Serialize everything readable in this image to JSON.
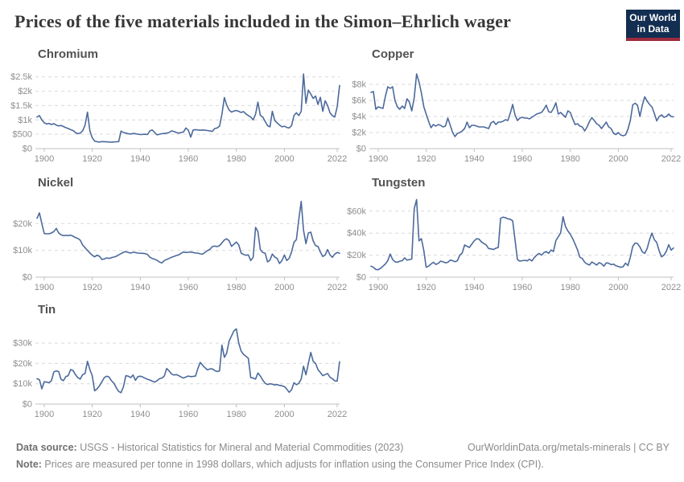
{
  "header": {
    "title": "Prices of the five materials included in the Simon–Ehrlich wager",
    "logo": {
      "line1": "Our World",
      "line2": "in Data"
    }
  },
  "footer": {
    "source_label": "Data source:",
    "source_text": " USGS - Historical Statistics for Mineral and Material Commodities (2023)",
    "attribution": "OurWorldinData.org/metals-minerals | CC BY",
    "note_label": "Note:",
    "note_text": " Prices are measured per tonne in 1998 dollars, which adjusts for inflation using the Consumer Price Index (CPI)."
  },
  "colors": {
    "line": "#4c6a9c",
    "grid": "#d9d9d9",
    "axis": "#c0c0c0",
    "tick_label": "#8e8e8e",
    "chart_title": "#525252",
    "page_title": "#373737",
    "logo_bg": "#122e50",
    "logo_red": "#9e2a3d"
  },
  "chart_data": [
    {
      "type": "line",
      "title": "Chromium",
      "start_year": 1897,
      "end_year": 2023,
      "x_ticks": [
        1900,
        1920,
        1940,
        1960,
        1980,
        2000,
        2022
      ],
      "x_tick_labels": [
        "1900",
        "1920",
        "1940",
        "1960",
        "1980",
        "2000",
        "2022"
      ],
      "y_ticks": [
        0,
        500,
        1000,
        1500,
        2000,
        2500
      ],
      "y_tick_labels": [
        "$0",
        "$500",
        "$1k",
        "$1.5k",
        "$2k",
        "$2.5k"
      ],
      "ymax": 2800,
      "values": [
        1100,
        1150,
        1000,
        900,
        860,
        880,
        840,
        870,
        820,
        790,
        810,
        770,
        730,
        700,
        660,
        630,
        560,
        520,
        540,
        620,
        820,
        1270,
        620,
        380,
        260,
        240,
        230,
        245,
        240,
        235,
        230,
        228,
        232,
        238,
        245,
        610,
        560,
        540,
        520,
        510,
        530,
        520,
        500,
        490,
        495,
        500,
        490,
        620,
        650,
        560,
        480,
        500,
        520,
        530,
        540,
        560,
        620,
        600,
        560,
        540,
        560,
        580,
        720,
        640,
        400,
        650,
        660,
        650,
        640,
        650,
        640,
        630,
        620,
        600,
        700,
        720,
        780,
        1200,
        1780,
        1520,
        1350,
        1270,
        1310,
        1330,
        1300,
        1260,
        1290,
        1210,
        1150,
        1100,
        1000,
        1200,
        1620,
        1160,
        1100,
        950,
        800,
        760,
        1300,
        980,
        900,
        820,
        760,
        780,
        740,
        720,
        800,
        1150,
        1250,
        1150,
        1300,
        2600,
        1580,
        2040,
        1900,
        1750,
        1830,
        1540,
        1790,
        1300,
        1670,
        1500,
        1250,
        1150,
        1100,
        1450,
        2200
      ]
    },
    {
      "type": "line",
      "title": "Copper",
      "start_year": 1897,
      "end_year": 2023,
      "x_ticks": [
        1900,
        1920,
        1940,
        1960,
        1980,
        2000,
        2022
      ],
      "x_tick_labels": [
        "1900",
        "1920",
        "1940",
        "1960",
        "1980",
        "2000",
        "2022"
      ],
      "y_ticks": [
        0,
        2000,
        4000,
        6000,
        8000
      ],
      "y_tick_labels": [
        "$0",
        "$2k",
        "$4k",
        "$6k",
        "$8k"
      ],
      "ymax": 10000,
      "values": [
        7000,
        7100,
        4900,
        5200,
        5100,
        5000,
        6500,
        7700,
        7500,
        7700,
        6000,
        5200,
        4900,
        5300,
        5000,
        6200,
        5800,
        4700,
        6300,
        9300,
        8300,
        6900,
        5200,
        4300,
        3400,
        2600,
        3000,
        2800,
        3000,
        2900,
        2700,
        2800,
        3800,
        2900,
        2000,
        1500,
        1900,
        2000,
        2200,
        2500,
        3300,
        2600,
        2900,
        2900,
        2800,
        2700,
        2700,
        2700,
        2600,
        2500,
        3200,
        3400,
        3000,
        3300,
        3300,
        3400,
        3600,
        3500,
        4400,
        5500,
        4200,
        3500,
        3800,
        3900,
        3800,
        3800,
        3700,
        3900,
        4100,
        4300,
        4400,
        4500,
        4900,
        5400,
        4600,
        4500,
        5000,
        5700,
        4300,
        4500,
        4200,
        3900,
        4700,
        4500,
        3700,
        3000,
        3100,
        2800,
        2700,
        2200,
        2700,
        3400,
        3850,
        3500,
        3100,
        2900,
        2500,
        2900,
        3300,
        2700,
        2500,
        1900,
        1750,
        2000,
        1700,
        1600,
        1700,
        2400,
        3500,
        5450,
        5650,
        5400,
        4000,
        5400,
        6450,
        5900,
        5500,
        5200,
        4400,
        3450,
        4000,
        4200,
        3900,
        4000,
        4300,
        4000,
        3950
      ]
    },
    {
      "type": "line",
      "title": "Nickel",
      "start_year": 1897,
      "end_year": 2023,
      "x_ticks": [
        1900,
        1920,
        1940,
        1960,
        1980,
        2000,
        2022
      ],
      "x_tick_labels": [
        "1900",
        "1920",
        "1940",
        "1960",
        "1980",
        "2000",
        "2022"
      ],
      "y_ticks": [
        0,
        10000,
        20000
      ],
      "y_tick_labels": [
        "$0",
        "$10k",
        "$20k"
      ],
      "ymax": 30000,
      "values": [
        22000,
        24000,
        20000,
        16300,
        16200,
        16200,
        16500,
        17000,
        18200,
        16500,
        15800,
        15500,
        15600,
        15500,
        15700,
        15300,
        14800,
        14500,
        13800,
        12000,
        11000,
        10000,
        9000,
        8200,
        7600,
        8200,
        7800,
        6600,
        6800,
        7200,
        7000,
        7300,
        7500,
        7800,
        8300,
        8800,
        9300,
        9500,
        9200,
        9000,
        9300,
        9200,
        9000,
        8900,
        8900,
        8800,
        8500,
        7400,
        7000,
        6700,
        6300,
        5600,
        5300,
        6200,
        6600,
        7000,
        7400,
        7700,
        8100,
        8300,
        8900,
        9400,
        9200,
        9300,
        9400,
        9200,
        9000,
        9000,
        8700,
        8600,
        9300,
        9900,
        10400,
        11400,
        11600,
        11400,
        11800,
        12800,
        13900,
        14300,
        13600,
        11500,
        12300,
        13100,
        12000,
        9000,
        8500,
        8200,
        8300,
        6200,
        7400,
        18600,
        17000,
        10300,
        9200,
        8900,
        5700,
        6400,
        8600,
        7500,
        7000,
        5100,
        6200,
        8300,
        6200,
        7000,
        9400,
        13000,
        14000,
        21500,
        28300,
        17500,
        12500,
        16500,
        16800,
        13500,
        11800,
        11500,
        9400,
        7700,
        8300,
        10300,
        8300,
        7400,
        8600,
        9200,
        8900
      ]
    },
    {
      "type": "line",
      "title": "Tungsten",
      "start_year": 1897,
      "end_year": 2023,
      "x_ticks": [
        1900,
        1920,
        1940,
        1960,
        1980,
        2000,
        2022
      ],
      "x_tick_labels": [
        "1900",
        "1920",
        "1940",
        "1960",
        "1980",
        "2000",
        "2022"
      ],
      "y_ticks": [
        0,
        20000,
        40000,
        60000
      ],
      "y_tick_labels": [
        "$0",
        "$20k",
        "$40k",
        "$60k"
      ],
      "ymax": 73000,
      "values": [
        10000,
        9000,
        7000,
        6800,
        8000,
        10000,
        12000,
        15000,
        21000,
        16000,
        14000,
        13500,
        14500,
        15000,
        17500,
        15500,
        16000,
        16500,
        62000,
        70500,
        33000,
        35000,
        24000,
        9000,
        10000,
        12000,
        13500,
        11500,
        12500,
        14500,
        14000,
        13000,
        13500,
        15500,
        15000,
        14000,
        15000,
        20000,
        22000,
        29300,
        28000,
        27000,
        30000,
        33000,
        35000,
        34500,
        32000,
        30500,
        29300,
        26000,
        25800,
        25100,
        26300,
        27000,
        53500,
        54500,
        54000,
        53000,
        52600,
        51200,
        34000,
        16000,
        14500,
        15000,
        15300,
        14800,
        16300,
        14700,
        17700,
        20000,
        21600,
        20000,
        22300,
        23300,
        21600,
        24700,
        23300,
        33300,
        36700,
        40200,
        54900,
        46000,
        42000,
        39000,
        35000,
        30000,
        25000,
        18000,
        17000,
        13500,
        12000,
        11000,
        13800,
        12500,
        11000,
        13200,
        12200,
        10000,
        13000,
        12600,
        11400,
        11800,
        10400,
        9600,
        9000,
        9400,
        12800,
        10500,
        18000,
        28000,
        31000,
        30500,
        27500,
        23000,
        21500,
        26000,
        34000,
        40000,
        34000,
        31500,
        24000,
        18500,
        20000,
        23500,
        29500,
        24500,
        26500
      ]
    },
    {
      "type": "line",
      "title": "Tin",
      "start_year": 1897,
      "end_year": 2023,
      "x_ticks": [
        1900,
        1920,
        1940,
        1960,
        1980,
        2000,
        2022
      ],
      "x_tick_labels": [
        "1900",
        "1920",
        "1940",
        "1960",
        "1980",
        "2000",
        "2022"
      ],
      "y_ticks": [
        0,
        10000,
        20000,
        30000
      ],
      "y_tick_labels": [
        "$0",
        "$10k",
        "$20k",
        "$30k"
      ],
      "ymax": 39500,
      "values": [
        12500,
        12000,
        7500,
        11000,
        10800,
        10500,
        11500,
        15800,
        16300,
        16000,
        12200,
        11500,
        13500,
        14000,
        17000,
        16500,
        14500,
        13000,
        12300,
        14500,
        15000,
        21000,
        17000,
        14000,
        6500,
        7500,
        9000,
        11000,
        13000,
        13700,
        13300,
        11500,
        10300,
        8000,
        6200,
        5600,
        8500,
        14000,
        13700,
        13000,
        14300,
        11700,
        13500,
        13700,
        13300,
        12700,
        12200,
        11800,
        11300,
        10800,
        11500,
        12500,
        12800,
        13800,
        17500,
        16300,
        14800,
        14300,
        14500,
        14000,
        13300,
        12800,
        13300,
        13800,
        13500,
        13600,
        13800,
        17500,
        20500,
        19000,
        17800,
        16800,
        17300,
        17300,
        16500,
        16000,
        16300,
        29000,
        23000,
        25000,
        31000,
        33500,
        36000,
        37000,
        30000,
        26000,
        24500,
        23500,
        22500,
        13000,
        12800,
        12300,
        15300,
        13800,
        11800,
        10200,
        9600,
        10000,
        9800,
        9400,
        9600,
        9200,
        9000,
        8600,
        7400,
        5800,
        7000,
        10500,
        9500,
        10200,
        12300,
        18600,
        14400,
        20000,
        25400,
        21000,
        20000,
        17000,
        15500,
        14000,
        14500,
        15000,
        13200,
        12500,
        11400,
        11300,
        20800
      ]
    }
  ]
}
